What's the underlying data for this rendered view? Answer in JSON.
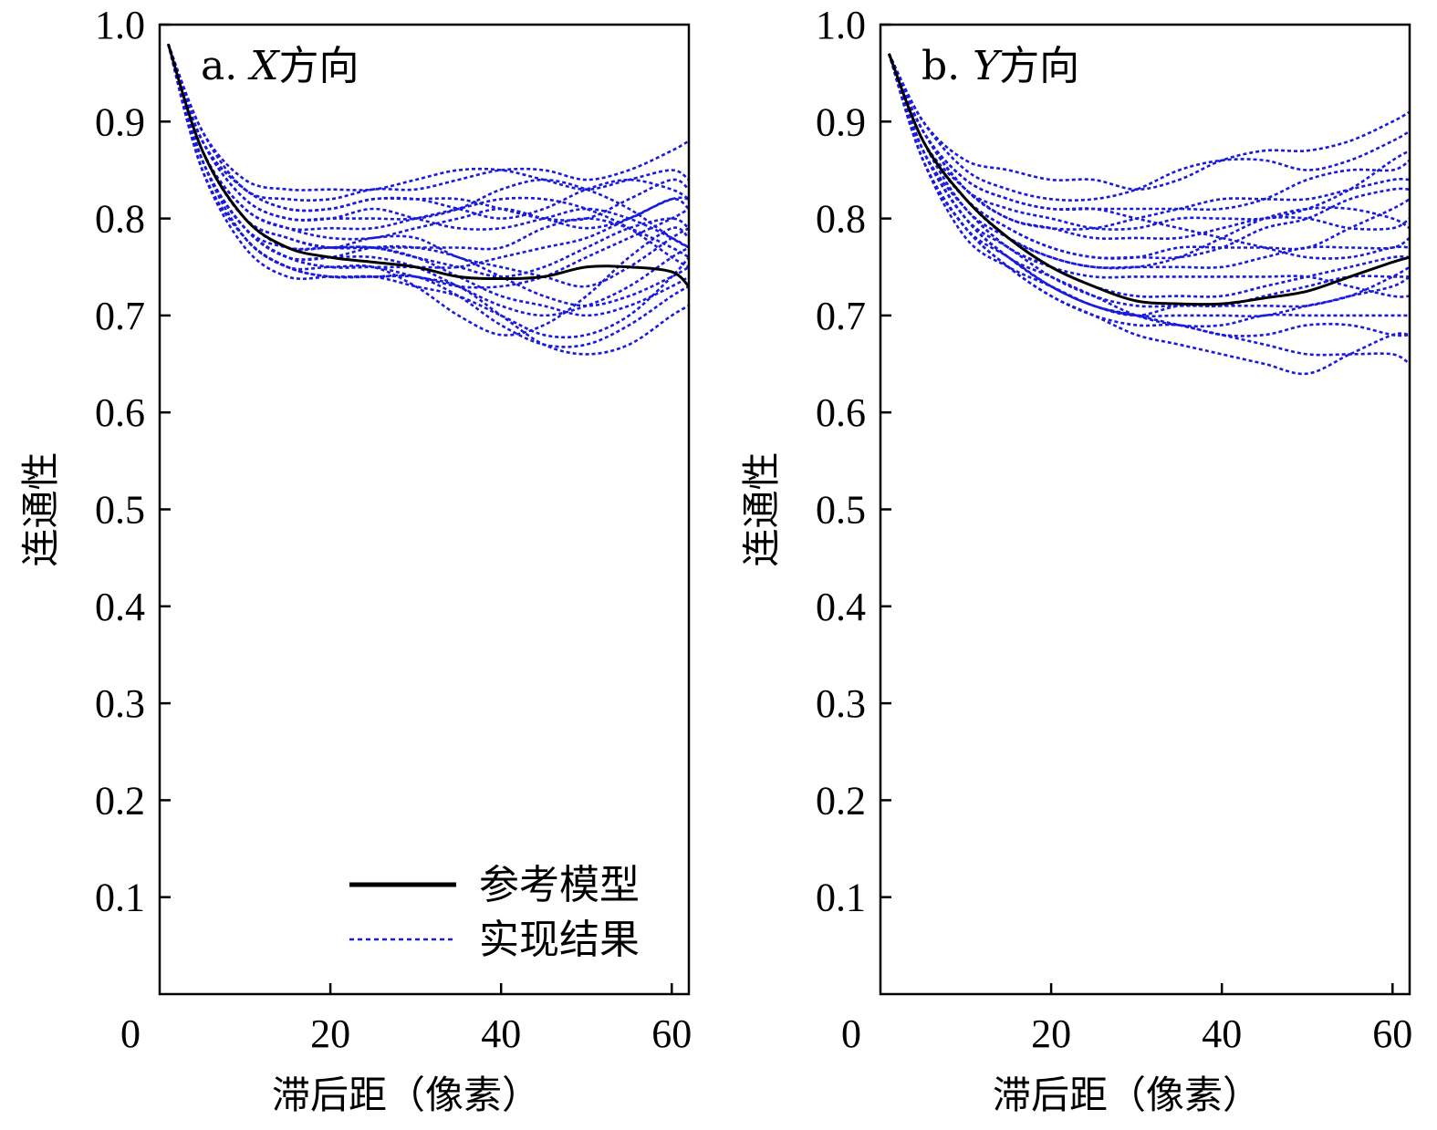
{
  "colors": {
    "reference": "#000000",
    "realization": "#1a1adc",
    "axis": "#000000"
  },
  "legend": {
    "reference_label": "参考模型",
    "realization_label": "实现结果"
  },
  "chart_data": [
    {
      "type": "line",
      "title": "a. X方向",
      "title_parts": [
        "a. ",
        "X",
        "方向"
      ],
      "xlabel": "滞后距（像素）",
      "ylabel": "连通性",
      "xlim": [
        0,
        62
      ],
      "ylim": [
        0,
        1.0
      ],
      "xticks": [
        0,
        20,
        40,
        60
      ],
      "xtick_labels": [
        "0",
        "20",
        "40",
        "60"
      ],
      "yticks": [
        0.1,
        0.2,
        0.3,
        0.4,
        0.5,
        0.6,
        0.7,
        0.8,
        0.9,
        1.0
      ],
      "ytick_labels": [
        "0.1",
        "0.2",
        "0.3",
        "0.4",
        "0.5",
        "0.6",
        "0.7",
        "0.8",
        "0.9",
        "1.0"
      ],
      "legend_position": "bottom-right",
      "x": [
        1,
        5,
        10,
        15,
        20,
        25,
        30,
        35,
        40,
        45,
        50,
        55,
        60,
        62
      ],
      "reference": {
        "name": "参考模型",
        "values": [
          0.98,
          0.87,
          0.8,
          0.77,
          0.76,
          0.755,
          0.75,
          0.74,
          0.738,
          0.74,
          0.75,
          0.75,
          0.745,
          0.73
        ]
      },
      "series": [
        {
          "values": [
            0.98,
            0.89,
            0.84,
            0.83,
            0.83,
            0.83,
            0.84,
            0.85,
            0.85,
            0.84,
            0.83,
            0.84,
            0.85,
            0.84
          ]
        },
        {
          "values": [
            0.98,
            0.89,
            0.83,
            0.82,
            0.82,
            0.83,
            0.83,
            0.84,
            0.85,
            0.85,
            0.84,
            0.85,
            0.87,
            0.88
          ]
        },
        {
          "values": [
            0.98,
            0.88,
            0.83,
            0.81,
            0.81,
            0.82,
            0.82,
            0.81,
            0.8,
            0.81,
            0.83,
            0.84,
            0.83,
            0.82
          ]
        },
        {
          "values": [
            0.98,
            0.88,
            0.82,
            0.8,
            0.8,
            0.81,
            0.8,
            0.79,
            0.79,
            0.8,
            0.81,
            0.8,
            0.78,
            0.77
          ]
        },
        {
          "values": [
            0.98,
            0.87,
            0.81,
            0.79,
            0.78,
            0.78,
            0.79,
            0.8,
            0.81,
            0.8,
            0.79,
            0.8,
            0.82,
            0.81
          ]
        },
        {
          "values": [
            0.98,
            0.87,
            0.8,
            0.78,
            0.77,
            0.77,
            0.77,
            0.77,
            0.77,
            0.79,
            0.8,
            0.79,
            0.77,
            0.76
          ]
        },
        {
          "values": [
            0.98,
            0.87,
            0.8,
            0.78,
            0.77,
            0.78,
            0.78,
            0.76,
            0.75,
            0.74,
            0.73,
            0.75,
            0.78,
            0.79
          ]
        },
        {
          "values": [
            0.98,
            0.86,
            0.79,
            0.77,
            0.77,
            0.77,
            0.76,
            0.74,
            0.72,
            0.71,
            0.7,
            0.71,
            0.73,
            0.74
          ]
        },
        {
          "values": [
            0.98,
            0.86,
            0.79,
            0.76,
            0.75,
            0.75,
            0.74,
            0.73,
            0.7,
            0.67,
            0.66,
            0.67,
            0.7,
            0.71
          ]
        },
        {
          "values": [
            0.98,
            0.86,
            0.78,
            0.75,
            0.74,
            0.74,
            0.74,
            0.72,
            0.69,
            0.67,
            0.67,
            0.69,
            0.72,
            0.73
          ]
        },
        {
          "values": [
            0.98,
            0.85,
            0.78,
            0.75,
            0.75,
            0.75,
            0.73,
            0.7,
            0.68,
            0.69,
            0.72,
            0.76,
            0.79,
            0.78
          ]
        },
        {
          "values": [
            0.98,
            0.85,
            0.77,
            0.74,
            0.74,
            0.74,
            0.74,
            0.73,
            0.73,
            0.74,
            0.76,
            0.78,
            0.8,
            0.81
          ]
        },
        {
          "values": [
            0.98,
            0.86,
            0.79,
            0.76,
            0.76,
            0.77,
            0.77,
            0.76,
            0.74,
            0.72,
            0.71,
            0.72,
            0.74,
            0.75
          ]
        },
        {
          "values": [
            0.98,
            0.87,
            0.81,
            0.79,
            0.79,
            0.79,
            0.8,
            0.81,
            0.82,
            0.82,
            0.81,
            0.79,
            0.76,
            0.75
          ]
        },
        {
          "values": [
            0.98,
            0.88,
            0.82,
            0.8,
            0.8,
            0.8,
            0.8,
            0.81,
            0.83,
            0.84,
            0.83,
            0.81,
            0.78,
            0.77
          ]
        },
        {
          "values": [
            0.98,
            0.86,
            0.79,
            0.76,
            0.75,
            0.75,
            0.75,
            0.75,
            0.76,
            0.77,
            0.78,
            0.8,
            0.82,
            0.82
          ]
        },
        {
          "values": [
            0.98,
            0.85,
            0.78,
            0.75,
            0.74,
            0.74,
            0.73,
            0.72,
            0.7,
            0.68,
            0.68,
            0.7,
            0.74,
            0.76
          ]
        },
        {
          "values": [
            0.98,
            0.87,
            0.8,
            0.77,
            0.77,
            0.77,
            0.76,
            0.75,
            0.74,
            0.75,
            0.77,
            0.79,
            0.8,
            0.79
          ]
        },
        {
          "values": [
            0.98,
            0.88,
            0.83,
            0.81,
            0.81,
            0.82,
            0.82,
            0.82,
            0.81,
            0.8,
            0.8,
            0.82,
            0.84,
            0.83
          ]
        },
        {
          "values": [
            0.98,
            0.86,
            0.79,
            0.76,
            0.76,
            0.76,
            0.75,
            0.73,
            0.71,
            0.7,
            0.71,
            0.73,
            0.76,
            0.77
          ]
        }
      ]
    },
    {
      "type": "line",
      "title": "b. Y方向",
      "title_parts": [
        "b. ",
        "Y",
        "方向"
      ],
      "xlabel": "滞后距（像素）",
      "ylabel": "连通性",
      "xlim": [
        0,
        62
      ],
      "ylim": [
        0,
        1.0
      ],
      "xticks": [
        0,
        20,
        40,
        60
      ],
      "xtick_labels": [
        "0",
        "20",
        "40",
        "60"
      ],
      "yticks": [
        0.1,
        0.2,
        0.3,
        0.4,
        0.5,
        0.6,
        0.7,
        0.8,
        0.9,
        1.0
      ],
      "ytick_labels": [
        "0.1",
        "0.2",
        "0.3",
        "0.4",
        "0.5",
        "0.6",
        "0.7",
        "0.8",
        "0.9",
        "1.0"
      ],
      "x": [
        1,
        5,
        10,
        15,
        20,
        25,
        30,
        35,
        40,
        45,
        50,
        55,
        60,
        62
      ],
      "reference": {
        "name": "参考模型",
        "values": [
          0.97,
          0.88,
          0.82,
          0.78,
          0.75,
          0.73,
          0.715,
          0.712,
          0.712,
          0.718,
          0.725,
          0.74,
          0.755,
          0.76
        ]
      },
      "series": [
        {
          "values": [
            0.97,
            0.9,
            0.86,
            0.85,
            0.84,
            0.84,
            0.83,
            0.84,
            0.86,
            0.87,
            0.87,
            0.88,
            0.9,
            0.91
          ]
        },
        {
          "values": [
            0.97,
            0.9,
            0.85,
            0.83,
            0.82,
            0.82,
            0.83,
            0.85,
            0.86,
            0.86,
            0.85,
            0.86,
            0.88,
            0.89
          ]
        },
        {
          "values": [
            0.97,
            0.89,
            0.84,
            0.82,
            0.81,
            0.81,
            0.81,
            0.81,
            0.81,
            0.82,
            0.84,
            0.85,
            0.85,
            0.86
          ]
        },
        {
          "values": [
            0.97,
            0.89,
            0.83,
            0.8,
            0.79,
            0.79,
            0.8,
            0.81,
            0.82,
            0.82,
            0.82,
            0.83,
            0.84,
            0.84
          ]
        },
        {
          "values": [
            0.97,
            0.88,
            0.83,
            0.8,
            0.79,
            0.78,
            0.78,
            0.78,
            0.79,
            0.8,
            0.8,
            0.79,
            0.79,
            0.8
          ]
        },
        {
          "values": [
            0.97,
            0.88,
            0.82,
            0.79,
            0.77,
            0.76,
            0.76,
            0.77,
            0.77,
            0.77,
            0.77,
            0.79,
            0.81,
            0.82
          ]
        },
        {
          "values": [
            0.97,
            0.88,
            0.82,
            0.78,
            0.76,
            0.75,
            0.75,
            0.75,
            0.75,
            0.76,
            0.77,
            0.77,
            0.77,
            0.78
          ]
        },
        {
          "values": [
            0.97,
            0.87,
            0.81,
            0.77,
            0.75,
            0.73,
            0.72,
            0.72,
            0.72,
            0.73,
            0.74,
            0.75,
            0.76,
            0.76
          ]
        },
        {
          "values": [
            0.97,
            0.87,
            0.8,
            0.77,
            0.74,
            0.72,
            0.71,
            0.71,
            0.71,
            0.71,
            0.71,
            0.72,
            0.73,
            0.74
          ]
        },
        {
          "values": [
            0.97,
            0.87,
            0.8,
            0.76,
            0.74,
            0.72,
            0.7,
            0.69,
            0.69,
            0.7,
            0.7,
            0.7,
            0.7,
            0.7
          ]
        },
        {
          "values": [
            0.97,
            0.86,
            0.79,
            0.75,
            0.72,
            0.7,
            0.68,
            0.67,
            0.66,
            0.65,
            0.64,
            0.66,
            0.68,
            0.68
          ]
        },
        {
          "values": [
            0.97,
            0.86,
            0.79,
            0.76,
            0.73,
            0.71,
            0.7,
            0.7,
            0.7,
            0.7,
            0.71,
            0.72,
            0.74,
            0.75
          ]
        },
        {
          "values": [
            0.97,
            0.86,
            0.78,
            0.75,
            0.73,
            0.71,
            0.7,
            0.69,
            0.68,
            0.67,
            0.66,
            0.66,
            0.66,
            0.65
          ]
        },
        {
          "values": [
            0.97,
            0.88,
            0.82,
            0.79,
            0.77,
            0.76,
            0.76,
            0.76,
            0.77,
            0.79,
            0.8,
            0.82,
            0.83,
            0.83
          ]
        },
        {
          "values": [
            0.97,
            0.89,
            0.83,
            0.81,
            0.8,
            0.79,
            0.79,
            0.8,
            0.8,
            0.8,
            0.81,
            0.83,
            0.86,
            0.87
          ]
        },
        {
          "values": [
            0.97,
            0.87,
            0.81,
            0.77,
            0.75,
            0.74,
            0.74,
            0.74,
            0.74,
            0.74,
            0.74,
            0.73,
            0.72,
            0.72
          ]
        },
        {
          "values": [
            0.97,
            0.87,
            0.8,
            0.76,
            0.73,
            0.71,
            0.7,
            0.71,
            0.71,
            0.72,
            0.73,
            0.74,
            0.74,
            0.74
          ]
        },
        {
          "values": [
            0.97,
            0.88,
            0.81,
            0.78,
            0.76,
            0.75,
            0.75,
            0.76,
            0.78,
            0.8,
            0.81,
            0.81,
            0.8,
            0.79
          ]
        },
        {
          "values": [
            0.97,
            0.86,
            0.79,
            0.75,
            0.72,
            0.7,
            0.69,
            0.69,
            0.68,
            0.68,
            0.69,
            0.69,
            0.68,
            0.68
          ]
        },
        {
          "values": [
            0.97,
            0.89,
            0.84,
            0.82,
            0.81,
            0.81,
            0.8,
            0.79,
            0.78,
            0.77,
            0.76,
            0.76,
            0.77,
            0.77
          ]
        }
      ]
    }
  ]
}
